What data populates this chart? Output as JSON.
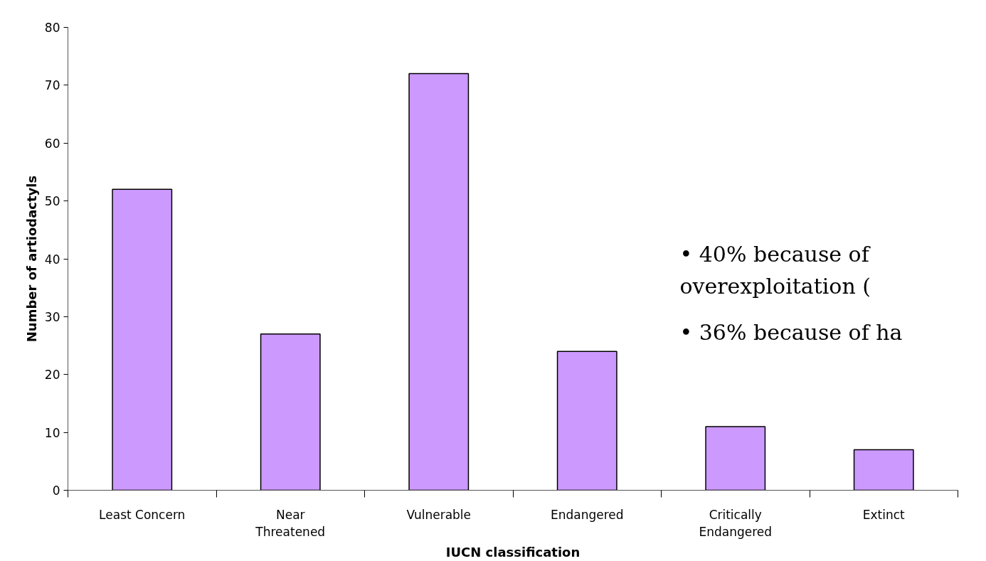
{
  "chart_data": {
    "type": "bar",
    "xlabel": "IUCN classification",
    "ylabel": "Number of artiodactyls",
    "categories": [
      "Least Concern",
      "Near\nThreatened",
      "Vulnerable",
      "Endangered",
      "Critically\nEndangered",
      "Extinct"
    ],
    "values": [
      52,
      27,
      72,
      24,
      11,
      7
    ],
    "color": "#cc99ff",
    "ylim": [
      0,
      80
    ],
    "yticks": [
      0,
      10,
      20,
      30,
      40,
      50,
      60,
      70,
      80
    ],
    "grid": false,
    "annotations": [
      "•   40% because of\n     overexploitation (",
      "•   36%  because of ha"
    ]
  }
}
